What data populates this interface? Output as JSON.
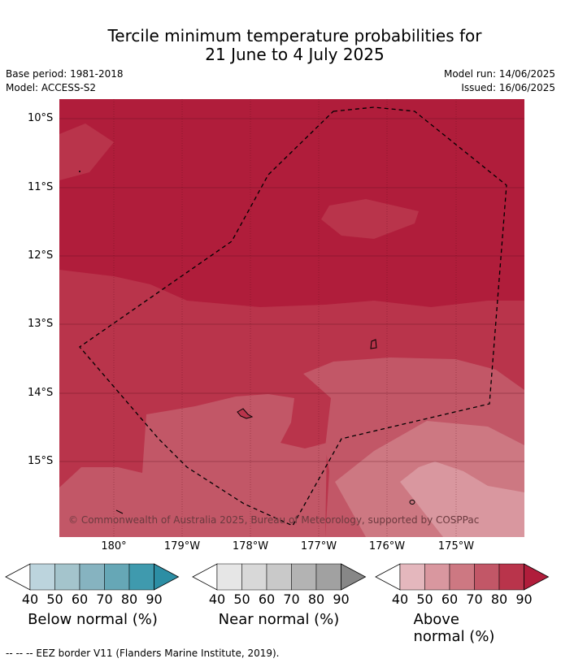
{
  "title_line1": "Tercile minimum temperature probabilities for",
  "title_line2": "21 June to 4 July 2025",
  "meta_left": [
    "Base period: 1981-2018",
    "Model: ACCESS-S2"
  ],
  "meta_right": [
    "Model run: 14/06/2025",
    "Issued: 16/06/2025"
  ],
  "lat_labels": [
    "10°S",
    "11°S",
    "12°S",
    "13°S",
    "14°S",
    "15°S"
  ],
  "lon_labels": [
    "180°",
    "179°W",
    "178°W",
    "177°W",
    "176°W",
    "175°W"
  ],
  "copyright": "© Commonwealth of Australia 2025, Bureau of Meteorology, supported by COSPPac",
  "colorbars": [
    {
      "title": "Below normal (%)",
      "ticks": [
        "40",
        "50",
        "60",
        "70",
        "80",
        "90"
      ],
      "colors": [
        "#ffffff",
        "#bcd4dd",
        "#a4c4cc",
        "#86b3c0",
        "#66a7b6",
        "#3f9aae",
        "#2c8ea4"
      ]
    },
    {
      "title": "Near normal (%)",
      "ticks": [
        "40",
        "50",
        "60",
        "70",
        "80",
        "90"
      ],
      "colors": [
        "#ffffff",
        "#e6e6e6",
        "#d8d8d8",
        "#c9c9c9",
        "#b3b3b3",
        "#a1a1a1",
        "#878787"
      ]
    },
    {
      "title": "Above normal (%)",
      "ticks": [
        "40",
        "50",
        "60",
        "70",
        "80",
        "90"
      ],
      "colors": [
        "#ffffff",
        "#e4b7bd",
        "#d9979f",
        "#cd7882",
        "#c25767",
        "#b9344b",
        "#b01d3b"
      ]
    }
  ],
  "footer": "-- -- -- EEZ border V11 (Flanders Marine Institute, 2019).",
  "colors": {
    "above_90": "#b01d3b",
    "above_80": "#b9344b",
    "above_70": "#c25767",
    "above_60": "#cd7882",
    "above_50": "#d9979f"
  }
}
